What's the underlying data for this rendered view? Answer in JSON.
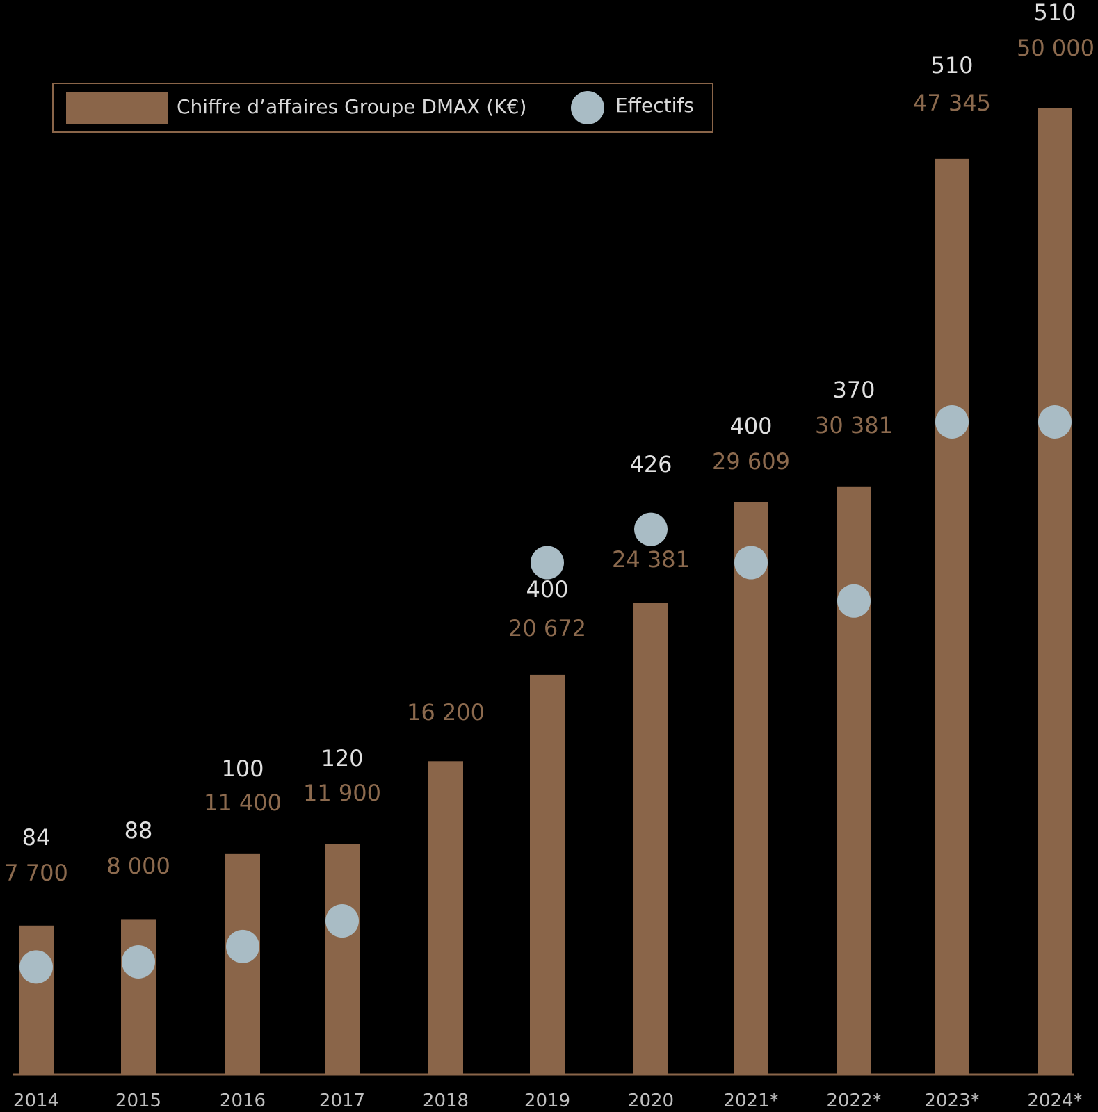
{
  "colors": {
    "background": "#000000",
    "bar": "#8a6549",
    "dot": "#a9bcc5",
    "legend_border": "#8a6549",
    "effectifs_label": "#e0e0e0",
    "revenue_label": "#8c6a4e"
  },
  "legend": {
    "revenue": "Chiffre d’affaires Groupe DMAX (K€)",
    "effectifs": "Effectifs"
  },
  "chart_data": {
    "type": "bar",
    "categories": [
      "2014",
      "2015",
      "2016",
      "2017",
      "2018",
      "2019",
      "2020",
      "2021*",
      "2022*",
      "2023*",
      "2024*"
    ],
    "series": [
      {
        "name": "Chiffre d’affaires Groupe DMAX (K€)",
        "type": "bar",
        "values": [
          7700,
          8000,
          11400,
          11900,
          16200,
          20672,
          24381,
          29609,
          30381,
          47345,
          50000
        ],
        "labels": [
          "7 700",
          "8 000",
          "11 400",
          "11 900",
          "16 200",
          "20 672",
          "24 381",
          "29 609",
          "30 381",
          "47 345",
          "50 000"
        ]
      },
      {
        "name": "Effectifs",
        "type": "scatter",
        "values": [
          84,
          88,
          100,
          120,
          null,
          400,
          426,
          400,
          370,
          510,
          510
        ],
        "labels": [
          "84",
          "88",
          "100",
          "120",
          "",
          "400",
          "426",
          "400",
          "370",
          "510",
          "510"
        ]
      }
    ],
    "legend_position": "top-left",
    "grid": false
  }
}
